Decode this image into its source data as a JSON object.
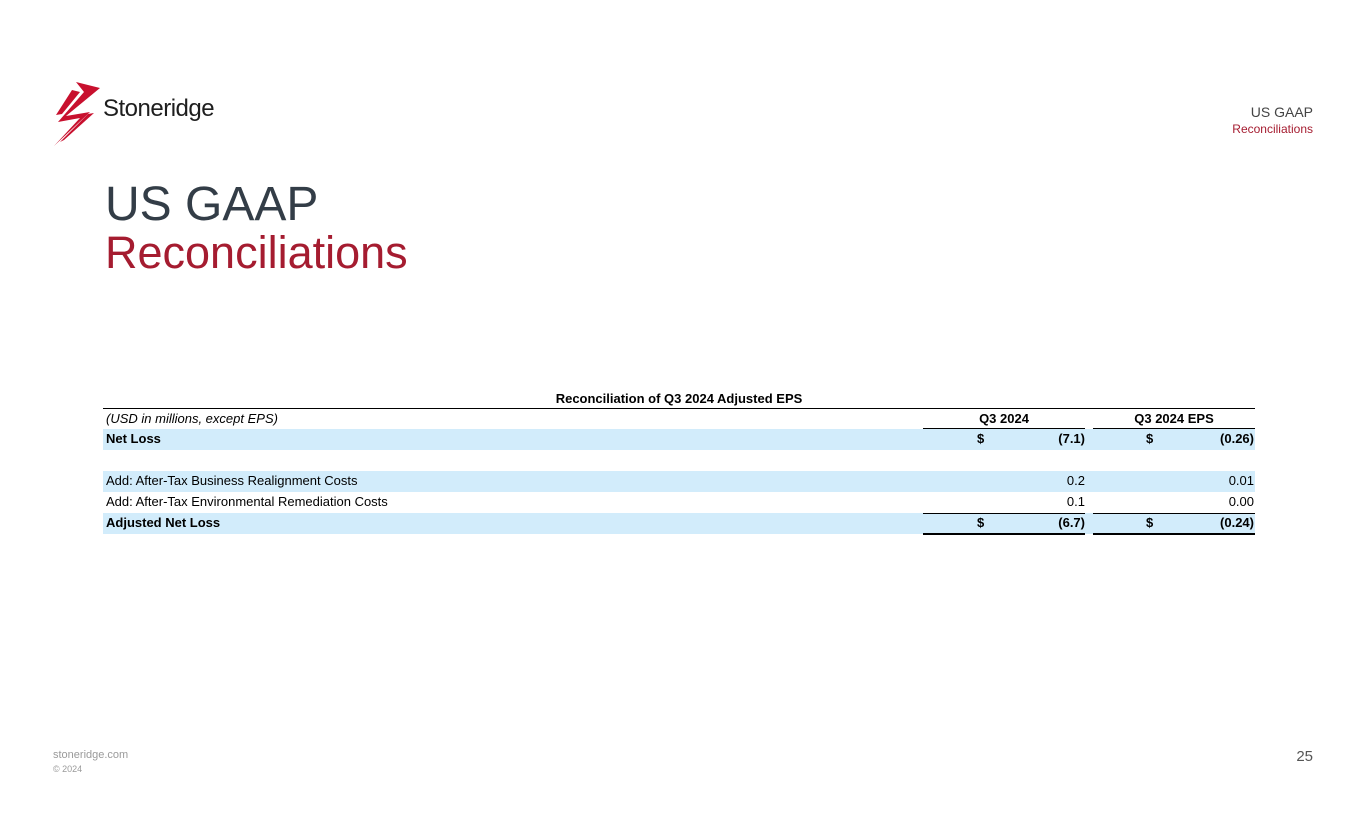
{
  "brand": {
    "logo_text": "Stoneridge",
    "accent": "#a51c30",
    "title_color": "#333d47",
    "row_shade": "#d2ecfb"
  },
  "corner": {
    "line1": "US GAAP",
    "line2": "Reconciliations"
  },
  "title": {
    "line1": "US GAAP",
    "line2": "Reconciliations"
  },
  "table": {
    "title": "Reconciliation of Q3 2024 Adjusted EPS",
    "header": {
      "label": "(USD in millions, except EPS)",
      "col1": "Q3 2024",
      "col2": "Q3 2024 EPS"
    },
    "rows": [
      {
        "label": "Net Loss",
        "cur1": "$",
        "val1": "(7.1)",
        "cur2": "$",
        "val2": "(0.26)"
      },
      {
        "label": "",
        "cur1": "",
        "val1": "",
        "cur2": "",
        "val2": ""
      },
      {
        "label": "Add: After-Tax Business Realignment Costs",
        "cur1": "",
        "val1": "0.2",
        "cur2": "",
        "val2": "0.01"
      },
      {
        "label": "Add: After-Tax Environmental Remediation Costs",
        "cur1": "",
        "val1": "0.1",
        "cur2": "",
        "val2": "0.00"
      },
      {
        "label": "Adjusted Net Loss",
        "cur1": "$",
        "val1": "(6.7)",
        "cur2": "$",
        "val2": "(0.24)"
      }
    ]
  },
  "footer": {
    "site": "stoneridge.com",
    "copyright": "© 2024",
    "page": "25"
  }
}
